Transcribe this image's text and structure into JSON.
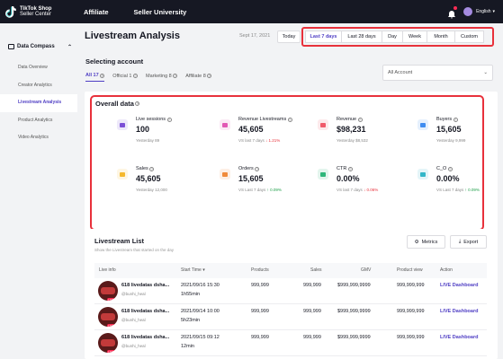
{
  "topbar": {
    "logo_line1": "TikTok Shop",
    "logo_line2": "Seller Center",
    "nav": [
      "Affiliate",
      "Seller University"
    ],
    "lang": "English"
  },
  "sidebar": {
    "group": "Data Compass",
    "items": [
      "Data Overview",
      "Creator Analytics",
      "Livestream Analysis",
      "Product Analytics",
      "Video Analytics"
    ],
    "active_index": 2
  },
  "header": {
    "title": "Livestream Analysis",
    "date": "Sept 17, 2021",
    "today": "Today",
    "ranges": [
      "Last 7 days",
      "Last 28 days",
      "Day",
      "Week",
      "Month",
      "Custom"
    ],
    "active_range": 0
  },
  "account": {
    "title": "Selecting account",
    "tabs": [
      "All 17",
      "Official 1",
      "Marketing 8",
      "Affiliate 8"
    ],
    "select_value": "All Account"
  },
  "overall": {
    "title": "Overall data",
    "metrics": [
      {
        "label": "Live sessions",
        "value": "100",
        "sub": "Yesterday 89",
        "change": "",
        "trend": "",
        "color": "#7b4fd6",
        "icon": "live-session-icon"
      },
      {
        "label": "Revenue Livestreams",
        "value": "45,605",
        "sub": "VS last 7 days",
        "change": "1.21%",
        "trend": "down",
        "color": "#e257b4",
        "icon": "revenue-chart-icon"
      },
      {
        "label": "Revenue",
        "value": "$98,231",
        "sub": "Yesterday $8,532",
        "change": "",
        "trend": "",
        "color": "#f05a6a",
        "icon": "revenue-icon"
      },
      {
        "label": "Buyers",
        "value": "15,605",
        "sub": "Yesterday 9,999",
        "change": "",
        "trend": "",
        "color": "#3f8cf0",
        "icon": "buyers-icon"
      },
      {
        "label": "Sales",
        "value": "45,605",
        "sub": "Yesterday 12,000",
        "change": "",
        "trend": "",
        "color": "#f5b82e",
        "icon": "sales-icon"
      },
      {
        "label": "Orders",
        "value": "15,605",
        "sub": "VS Last 7 days",
        "change": "0.09%",
        "trend": "up",
        "color": "#f08a3a",
        "icon": "orders-icon"
      },
      {
        "label": "CTR",
        "value": "0.00%",
        "sub": "VS last 7 days",
        "change": "0.06%",
        "trend": "down",
        "color": "#2fb67a",
        "icon": "ctr-icon"
      },
      {
        "label": "C_O",
        "value": "0.00%",
        "sub": "VS Last 7 days",
        "change": "0.09%",
        "trend": "up",
        "color": "#33b6c8",
        "icon": "conversion-icon"
      }
    ]
  },
  "livestream": {
    "title": "Livestream List",
    "subtitle": "Show the Livestream that started on the day",
    "metrics_btn": "Metrics",
    "export_btn": "Export",
    "columns": [
      "Live info",
      "Start Time",
      "Products",
      "Sales",
      "GMV",
      "Product view",
      "Action"
    ],
    "rows": [
      {
        "name": "618 livedatas dsha...",
        "handle": "@bunhi_heal",
        "start": "2021/09/16 15:30",
        "duration": "1h55min",
        "products": "999,999",
        "sales": "999,999",
        "gmv": "$999,999,9999",
        "views": "999,999,999",
        "action": "LIVE Dashboard"
      },
      {
        "name": "618 livedatas dsha...",
        "handle": "@bunhi_heal",
        "start": "2021/09/14 10:00",
        "duration": "5h23min",
        "products": "999,999",
        "sales": "999,999",
        "gmv": "$999,999,9999",
        "views": "999,999,999",
        "action": "LIVE Dashboard"
      },
      {
        "name": "618 livedatas dsha...",
        "handle": "@bunhi_heal",
        "start": "2021/09/15 09:12",
        "duration": "12min",
        "products": "999,999",
        "sales": "999,999",
        "gmv": "$999,999,9999",
        "views": "999,999,999",
        "action": "LIVE Dashboard"
      }
    ]
  }
}
